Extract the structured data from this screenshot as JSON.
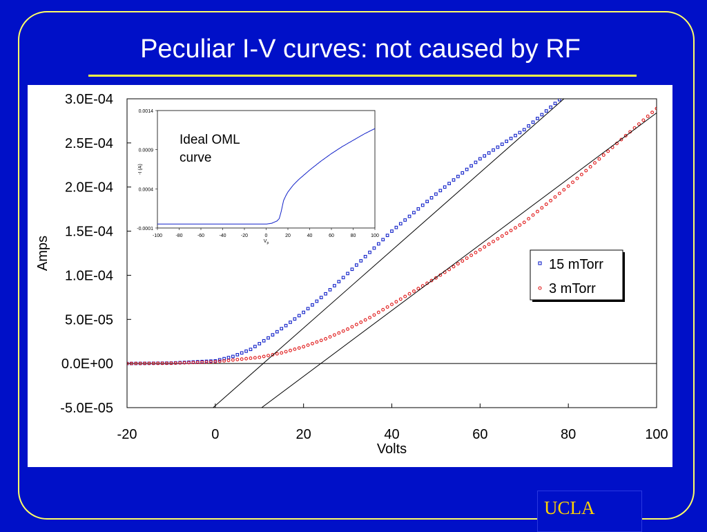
{
  "slide": {
    "title": "Peculiar I-V curves: not caused by RF",
    "logo": "UCLA"
  },
  "colors": {
    "background": "#0010c8",
    "frame": "#ffff66",
    "series_15": "#1020c8",
    "series_3": "#e01818",
    "logo": "#ffd200"
  },
  "chart_data": [
    {
      "type": "scatter",
      "title": "",
      "xlabel": "Volts",
      "ylabel": "Amps",
      "xlim": [
        -20,
        100
      ],
      "ylim": [
        -5e-05,
        0.0003
      ],
      "xticks": [
        "-20",
        "0",
        "20",
        "40",
        "60",
        "80",
        "100"
      ],
      "yticks": [
        "-5.0E-05",
        "0.0E+00",
        "5.0E-05",
        "1.0E-04",
        "1.5E-04",
        "2.0E-04",
        "2.5E-04",
        "3.0E-04"
      ],
      "legend_position": "right",
      "series": [
        {
          "name": "15 mTorr",
          "marker": "square",
          "x": [
            -20,
            -10,
            0,
            4,
            8,
            12,
            16,
            20,
            25,
            30,
            40,
            50,
            60,
            70,
            78
          ],
          "y": [
            0,
            5e-07,
            3e-06,
            8e-06,
            1.6e-05,
            2.9e-05,
            4.3e-05,
            5.8e-05,
            7.9e-05,
            0.000102,
            0.00015,
            0.000192,
            0.000232,
            0.000265,
            0.000299
          ]
        },
        {
          "name": "3 mTorr",
          "marker": "circle",
          "x": [
            -20,
            -10,
            0,
            10,
            15,
            20,
            25,
            30,
            35,
            40,
            50,
            60,
            70,
            80,
            90,
            100
          ],
          "y": [
            0,
            3e-07,
            2e-06,
            7e-06,
            1.2e-05,
            1.9e-05,
            2.8e-05,
            3.9e-05,
            5.2e-05,
            6.7e-05,
            9.7e-05,
            0.000129,
            0.00016,
            0.000201,
            0.000245,
            0.000289
          ]
        },
        {
          "name": "",
          "type": "line",
          "x": [
            -0.5,
            79
          ],
          "y": [
            -5e-05,
            0.0003
          ]
        },
        {
          "name": "",
          "type": "line",
          "x": [
            10.5,
            100
          ],
          "y": [
            -5e-05,
            0.000284
          ]
        }
      ],
      "hlines": [
        0
      ]
    },
    {
      "type": "line",
      "title": "",
      "annotation": "Ideal OML curve",
      "xlabel": "V",
      "xlabel_subscript": "p",
      "ylabel": "-I (A)",
      "xlim": [
        -100,
        100
      ],
      "ylim": [
        -0.0001,
        0.0014
      ],
      "xticks": [
        "-100",
        "-80",
        "-60",
        "-40",
        "-20",
        "0",
        "20",
        "40",
        "60",
        "80",
        "100"
      ],
      "yticks": [
        "-0.0001",
        "0.0004",
        "0.0009",
        "0.0014"
      ],
      "series": [
        {
          "name": "",
          "x": [
            -100,
            0,
            5,
            10,
            12,
            14,
            16,
            18,
            20,
            25,
            30,
            40,
            50,
            60,
            70,
            80,
            90,
            100
          ],
          "y": [
            -5e-05,
            -5e-05,
            -4e-05,
            -1e-05,
            2e-05,
            0.00012,
            0.00025,
            0.00031,
            0.00036,
            0.00045,
            0.00052,
            0.00064,
            0.00075,
            0.00085,
            0.00094,
            0.00102,
            0.0011,
            0.00117
          ]
        }
      ]
    }
  ]
}
